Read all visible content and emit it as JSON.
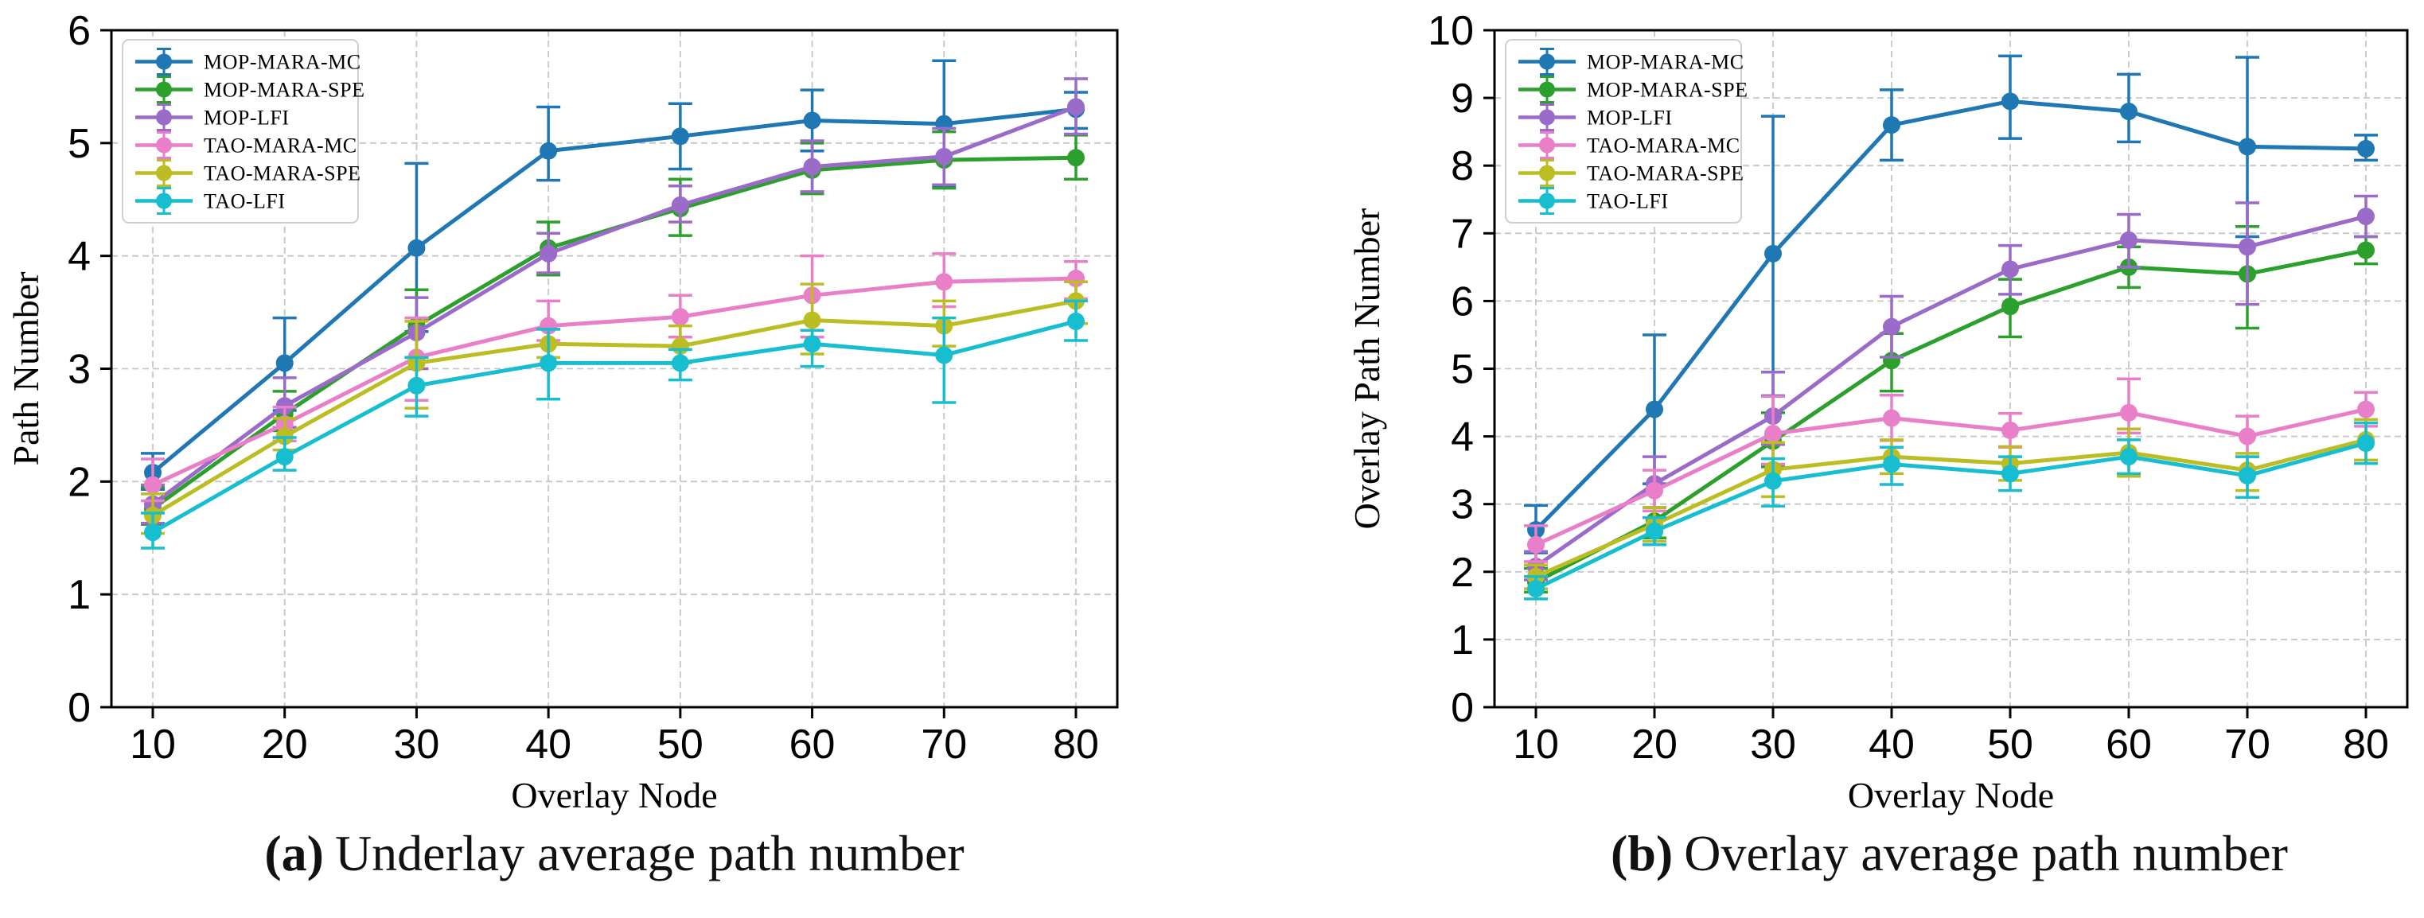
{
  "page": {
    "background": "#ffffff"
  },
  "captions": [
    {
      "label": "(a)",
      "text": "Underlay average path number"
    },
    {
      "label": "(b)",
      "text": "Overlay average path number"
    }
  ],
  "chart_data": [
    {
      "type": "line",
      "title": "(a) Underlay average path number",
      "xlabel": "Overlay Node",
      "ylabel": "Path Number",
      "x": [
        10,
        20,
        30,
        40,
        50,
        60,
        70,
        80
      ],
      "ylim": [
        0,
        6
      ],
      "yticks": [
        0,
        1,
        2,
        3,
        4,
        5,
        6
      ],
      "grid": true,
      "legend_position": "upper-left",
      "series": [
        {
          "name": "MOP-MARA-MC",
          "color": "#1f77b4",
          "values": [
            2.08,
            3.05,
            4.07,
            4.93,
            5.06,
            5.2,
            5.17,
            5.3
          ],
          "err_lo": [
            0.15,
            0.42,
            0.74,
            0.26,
            0.29,
            0.27,
            0.55,
            0.17
          ],
          "err_hi": [
            0.17,
            0.4,
            0.75,
            0.39,
            0.29,
            0.27,
            0.56,
            0.15
          ]
        },
        {
          "name": "MOP-MARA-SPE",
          "color": "#2ca02c",
          "values": [
            1.76,
            2.6,
            3.38,
            4.07,
            4.42,
            4.76,
            4.85,
            4.87
          ],
          "err_lo": [
            0.14,
            0.15,
            0.28,
            0.24,
            0.24,
            0.21,
            0.25,
            0.19
          ],
          "err_hi": [
            0.19,
            0.2,
            0.32,
            0.23,
            0.26,
            0.24,
            0.25,
            0.2
          ]
        },
        {
          "name": "MOP-LFI",
          "color": "#9b6bc9",
          "values": [
            1.8,
            2.67,
            3.32,
            4.02,
            4.45,
            4.79,
            4.88,
            5.32
          ],
          "err_lo": [
            0.17,
            0.19,
            0.32,
            0.17,
            0.15,
            0.22,
            0.25,
            0.24
          ],
          "err_hi": [
            0.17,
            0.25,
            0.31,
            0.18,
            0.17,
            0.23,
            0.25,
            0.25
          ]
        },
        {
          "name": "TAO-MARA-MC",
          "color": "#e97fc9",
          "values": [
            1.97,
            2.51,
            3.1,
            3.38,
            3.46,
            3.65,
            3.77,
            3.8
          ],
          "err_lo": [
            0.14,
            0.15,
            0.38,
            0.13,
            0.18,
            0.37,
            0.22,
            0.18
          ],
          "err_hi": [
            0.23,
            0.15,
            0.35,
            0.22,
            0.19,
            0.35,
            0.25,
            0.15
          ]
        },
        {
          "name": "TAO-MARA-SPE",
          "color": "#bcbd22",
          "values": [
            1.7,
            2.4,
            3.05,
            3.22,
            3.2,
            3.43,
            3.38,
            3.6
          ],
          "err_lo": [
            0.16,
            0.12,
            0.4,
            0.12,
            0.15,
            0.3,
            0.18,
            0.2
          ],
          "err_hi": [
            0.19,
            0.16,
            0.37,
            0.13,
            0.18,
            0.32,
            0.22,
            0.17
          ]
        },
        {
          "name": "TAO-LFI",
          "color": "#17becf",
          "values": [
            1.55,
            2.22,
            2.85,
            3.05,
            3.05,
            3.22,
            3.12,
            3.42
          ],
          "err_lo": [
            0.14,
            0.12,
            0.27,
            0.32,
            0.15,
            0.2,
            0.42,
            0.17
          ],
          "err_hi": [
            0.17,
            0.17,
            0.25,
            0.3,
            0.12,
            0.12,
            0.33,
            0.18
          ]
        }
      ]
    },
    {
      "type": "line",
      "title": "(b) Overlay average path number",
      "xlabel": "Overlay Node",
      "ylabel": "Overlay Path Number",
      "x": [
        10,
        20,
        30,
        40,
        50,
        60,
        70,
        80
      ],
      "ylim": [
        0,
        10
      ],
      "yticks": [
        0,
        1,
        2,
        3,
        4,
        5,
        6,
        7,
        8,
        9,
        10
      ],
      "grid": true,
      "legend_position": "upper-left",
      "series": [
        {
          "name": "MOP-MARA-MC",
          "color": "#1f77b4",
          "values": [
            2.62,
            4.4,
            6.7,
            8.6,
            8.95,
            8.8,
            8.28,
            8.25
          ],
          "err_lo": [
            0.34,
            1.1,
            2.1,
            0.52,
            0.55,
            0.45,
            1.33,
            0.17
          ],
          "err_hi": [
            0.36,
            1.1,
            2.03,
            0.52,
            0.67,
            0.55,
            1.32,
            0.2
          ]
        },
        {
          "name": "MOP-MARA-SPE",
          "color": "#2ca02c",
          "values": [
            1.85,
            2.75,
            3.93,
            5.12,
            5.92,
            6.5,
            6.4,
            6.75
          ],
          "err_lo": [
            0.15,
            0.25,
            0.38,
            0.45,
            0.45,
            0.3,
            0.8,
            0.2
          ],
          "err_hi": [
            0.2,
            0.2,
            0.42,
            0.4,
            0.4,
            0.3,
            0.7,
            0.2
          ]
        },
        {
          "name": "MOP-LFI",
          "color": "#9b6bc9",
          "values": [
            2.08,
            3.3,
            4.3,
            5.62,
            6.47,
            6.9,
            6.8,
            7.25
          ],
          "err_lo": [
            0.2,
            0.35,
            0.42,
            0.45,
            0.37,
            0.4,
            0.85,
            0.3
          ],
          "err_hi": [
            0.22,
            0.4,
            0.65,
            0.45,
            0.35,
            0.38,
            0.65,
            0.3
          ]
        },
        {
          "name": "TAO-MARA-MC",
          "color": "#e97fc9",
          "values": [
            2.4,
            3.2,
            4.04,
            4.27,
            4.09,
            4.35,
            4.0,
            4.4
          ],
          "err_lo": [
            0.25,
            0.3,
            0.45,
            0.33,
            0.25,
            0.3,
            0.3,
            0.25
          ],
          "err_hi": [
            0.28,
            0.3,
            0.55,
            0.34,
            0.25,
            0.5,
            0.3,
            0.25
          ]
        },
        {
          "name": "TAO-MARA-SPE",
          "color": "#bcbd22",
          "values": [
            1.93,
            2.7,
            3.51,
            3.7,
            3.6,
            3.76,
            3.5,
            3.95
          ],
          "err_lo": [
            0.18,
            0.25,
            0.4,
            0.25,
            0.25,
            0.35,
            0.3,
            0.3
          ],
          "err_hi": [
            0.17,
            0.25,
            0.4,
            0.25,
            0.25,
            0.35,
            0.25,
            0.3
          ]
        },
        {
          "name": "TAO-LFI",
          "color": "#17becf",
          "values": [
            1.75,
            2.6,
            3.34,
            3.59,
            3.45,
            3.7,
            3.42,
            3.9
          ],
          "err_lo": [
            0.15,
            0.2,
            0.37,
            0.3,
            0.25,
            0.25,
            0.32,
            0.3
          ],
          "err_hi": [
            0.18,
            0.2,
            0.33,
            0.25,
            0.25,
            0.25,
            0.28,
            0.3
          ]
        }
      ]
    }
  ]
}
